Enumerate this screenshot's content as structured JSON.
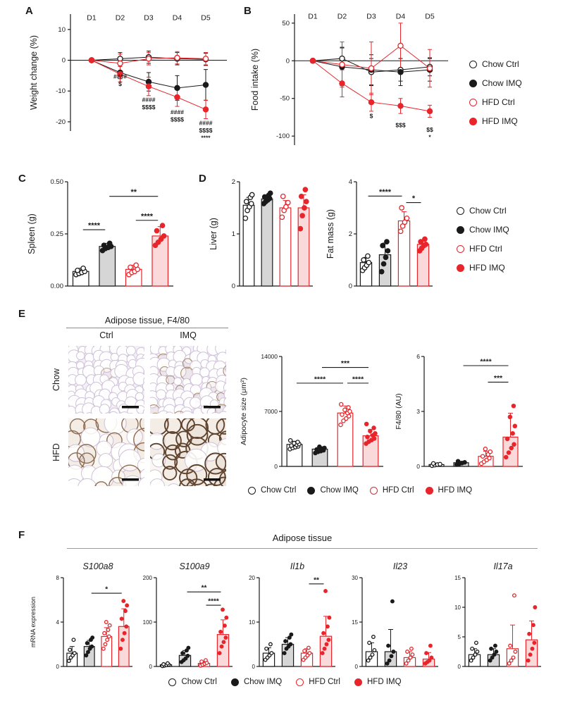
{
  "figure": {
    "panel_labels": {
      "A": "A",
      "B": "B",
      "C": "C",
      "D": "D",
      "E": "E",
      "F": "F"
    }
  },
  "colors": {
    "black": "#1a1a1a",
    "red": "#e8252b",
    "gray_fill": "#d6d6d6",
    "pink_fill": "#f9d9d9"
  },
  "legend": {
    "entries": [
      {
        "label": "Chow Ctrl",
        "marker": "open-black"
      },
      {
        "label": "Chow IMQ",
        "marker": "filled-black"
      },
      {
        "label": "HFD Ctrl",
        "marker": "open-red"
      },
      {
        "label": "HFD IMQ",
        "marker": "filled-red"
      }
    ]
  },
  "panel_e": {
    "header": "Adipose tissue, F4/80",
    "col_labels": [
      "Ctrl",
      "IMQ"
    ],
    "row_labels": [
      "Chow",
      "HFD"
    ],
    "images": [
      {
        "name": "chow-ctrl",
        "cell_size": "small",
        "stain": "none"
      },
      {
        "name": "chow-imq",
        "cell_size": "small",
        "stain": "light"
      },
      {
        "name": "hfd-ctrl",
        "cell_size": "large",
        "stain": "moderate"
      },
      {
        "name": "hfd-imq",
        "cell_size": "large",
        "stain": "heavy"
      }
    ]
  },
  "panel_f": {
    "title": "Adipose tissue"
  },
  "chart_data": [
    {
      "id": "weight_change",
      "type": "line",
      "panel": "A",
      "ylabel": "Weight change (%)",
      "x": [
        "D1",
        "D2",
        "D3",
        "D4",
        "D5"
      ],
      "ylim": [
        -23,
        15
      ],
      "yticks": [
        -20,
        -10,
        0,
        10
      ],
      "series": [
        {
          "name": "Chow Ctrl",
          "marker": "open-black",
          "values": [
            0,
            0.5,
            1,
            0.5,
            0.3
          ],
          "errors": [
            0,
            2,
            2,
            2,
            2
          ]
        },
        {
          "name": "Chow IMQ",
          "marker": "filled-black",
          "values": [
            0,
            -4,
            -7,
            -9,
            -8
          ],
          "errors": [
            0,
            2,
            3,
            4,
            5
          ]
        },
        {
          "name": "HFD Ctrl",
          "marker": "open-red",
          "values": [
            0,
            -1,
            0.5,
            0.8,
            0.5
          ],
          "errors": [
            0,
            3,
            2,
            2,
            2
          ]
        },
        {
          "name": "HFD IMQ",
          "marker": "filled-red",
          "values": [
            0,
            -4.5,
            -8.5,
            -12,
            -16
          ],
          "errors": [
            0,
            2.5,
            3,
            3,
            3
          ]
        }
      ],
      "annotations": [
        {
          "x": "D2",
          "y": -6,
          "lines": [
            "####",
            "$"
          ]
        },
        {
          "x": "D3",
          "y": -13.5,
          "lines": [
            "####",
            "$$$$"
          ]
        },
        {
          "x": "D4",
          "y": -17.5,
          "lines": [
            "####",
            "$$$$"
          ]
        },
        {
          "x": "D5",
          "y": -21,
          "lines": [
            "####",
            "$$$$",
            "****"
          ]
        }
      ]
    },
    {
      "id": "food_intake",
      "type": "line",
      "panel": "B",
      "ylabel": "Food intake (%)",
      "x": [
        "D1",
        "D2",
        "D3",
        "D4",
        "D5"
      ],
      "ylim": [
        -112,
        62
      ],
      "yticks": [
        -100,
        -50,
        0,
        50
      ],
      "series": [
        {
          "name": "Chow Ctrl",
          "marker": "open-black",
          "values": [
            0,
            3,
            -15,
            -12,
            -8
          ],
          "errors": [
            0,
            15,
            18,
            15,
            12
          ]
        },
        {
          "name": "Chow IMQ",
          "marker": "filled-black",
          "values": [
            0,
            -8,
            -12,
            -15,
            -12
          ],
          "errors": [
            0,
            25,
            20,
            18,
            15
          ]
        },
        {
          "name": "HFD Ctrl",
          "marker": "open-red",
          "values": [
            0,
            -5,
            -10,
            20,
            -10
          ],
          "errors": [
            0,
            30,
            35,
            30,
            25
          ]
        },
        {
          "name": "HFD IMQ",
          "marker": "filled-red",
          "values": [
            0,
            -30,
            -55,
            -60,
            -67
          ],
          "errors": [
            0,
            18,
            12,
            10,
            8
          ]
        }
      ],
      "annotations": [
        {
          "x": "D3",
          "y": -76,
          "lines": [
            "$"
          ]
        },
        {
          "x": "D4",
          "y": -88,
          "lines": [
            "$$$"
          ]
        },
        {
          "x": "D5",
          "y": -94,
          "lines": [
            "$$",
            "*"
          ]
        }
      ]
    },
    {
      "id": "spleen",
      "type": "bar",
      "panel": "C",
      "ylabel": "Spleen (g)",
      "groups": [
        "Chow Ctrl",
        "Chow IMQ",
        "HFD Ctrl",
        "HFD IMQ"
      ],
      "ylim": [
        0,
        0.5
      ],
      "yticks": [
        0,
        0.25,
        0.5
      ],
      "ytick_labels": [
        "0.00",
        "0.25",
        "0.50"
      ],
      "values": [
        0.07,
        0.19,
        0.08,
        0.24
      ],
      "errors": [
        0.015,
        0.015,
        0.02,
        0.045
      ],
      "dots": [
        [
          0.055,
          0.06,
          0.065,
          0.07,
          0.075,
          0.085
        ],
        [
          0.17,
          0.18,
          0.185,
          0.19,
          0.195,
          0.205
        ],
        [
          0.055,
          0.065,
          0.07,
          0.08,
          0.09,
          0.1
        ],
        [
          0.195,
          0.21,
          0.225,
          0.24,
          0.265,
          0.29
        ]
      ],
      "brackets": [
        {
          "from": 0,
          "to": 1,
          "label": "****",
          "y": 0.27
        },
        {
          "from": 2,
          "to": 3,
          "label": "****",
          "y": 0.315
        },
        {
          "from": 1,
          "to": 3,
          "label": "**",
          "y": 0.43
        }
      ]
    },
    {
      "id": "liver",
      "type": "bar",
      "panel": "D",
      "ylabel": "Liver (g)",
      "groups": [
        "Chow Ctrl",
        "Chow IMQ",
        "HFD Ctrl",
        "HFD IMQ"
      ],
      "ylim": [
        0,
        2
      ],
      "yticks": [
        0,
        1,
        2
      ],
      "values": [
        1.55,
        1.67,
        1.5,
        1.5
      ],
      "errors": [
        0.15,
        0.07,
        0.14,
        0.25
      ],
      "dots": [
        [
          1.3,
          1.45,
          1.52,
          1.58,
          1.62,
          1.7,
          1.75
        ],
        [
          1.58,
          1.62,
          1.65,
          1.68,
          1.71,
          1.74,
          1.78
        ],
        [
          1.32,
          1.45,
          1.52,
          1.6,
          1.72
        ],
        [
          1.1,
          1.35,
          1.5,
          1.62,
          1.72,
          1.85
        ]
      ],
      "brackets": []
    },
    {
      "id": "fat_mass",
      "type": "bar",
      "panel": "D",
      "ylabel": "Fat mass (g)",
      "groups": [
        "Chow Ctrl",
        "Chow IMQ",
        "HFD Ctrl",
        "HFD IMQ"
      ],
      "ylim": [
        0,
        4
      ],
      "yticks": [
        0,
        2,
        4
      ],
      "values": [
        0.9,
        1.2,
        2.5,
        1.6
      ],
      "errors": [
        0.2,
        0.45,
        0.35,
        0.15
      ],
      "dots": [
        [
          0.6,
          0.7,
          0.8,
          0.9,
          1.0,
          1.15
        ],
        [
          0.55,
          0.85,
          1.1,
          1.35,
          1.55,
          1.7
        ],
        [
          2.1,
          2.3,
          2.45,
          2.6,
          3.0
        ],
        [
          1.35,
          1.45,
          1.55,
          1.6,
          1.7,
          1.8
        ]
      ],
      "brackets": [
        {
          "from": 0,
          "to": 2,
          "label": "****",
          "y": 3.45
        },
        {
          "from": 2,
          "to": 3,
          "label": "*",
          "y": 3.2
        }
      ]
    },
    {
      "id": "adipocyte_size",
      "type": "bar",
      "panel": "E",
      "ylabel": "Adipocyte size (μm²)",
      "groups": [
        "Chow Ctrl",
        "Chow IMQ",
        "HFD Ctrl",
        "HFD IMQ"
      ],
      "ylim": [
        0,
        14000
      ],
      "yticks": [
        0,
        7000,
        14000
      ],
      "values": [
        2800,
        2200,
        6800,
        3900
      ],
      "errors": [
        400,
        280,
        900,
        800
      ],
      "dots": [
        [
          2200,
          2350,
          2450,
          2550,
          2650,
          2750,
          2850,
          2950,
          3100,
          3300
        ],
        [
          1700,
          1850,
          1950,
          2050,
          2150,
          2250,
          2350,
          2500
        ],
        [
          5300,
          5800,
          6100,
          6400,
          6600,
          6800,
          7000,
          7200,
          7500,
          7900
        ],
        [
          2900,
          3150,
          3350,
          3550,
          3750,
          3950,
          4200,
          4500,
          4900,
          5400
        ]
      ],
      "brackets": [
        {
          "from": 1,
          "to": 3,
          "label": "***",
          "y": 12600
        },
        {
          "from": 0,
          "to": 2,
          "label": "****",
          "y": 10600
        },
        {
          "from": 2,
          "to": 3,
          "label": "****",
          "y": 10600
        }
      ]
    },
    {
      "id": "f480",
      "type": "bar",
      "panel": "E",
      "ylabel": "F4/80 (AU)",
      "groups": [
        "Chow Ctrl",
        "Chow IMQ",
        "HFD Ctrl",
        "HFD IMQ"
      ],
      "ylim": [
        0,
        6
      ],
      "yticks": [
        0,
        3,
        6
      ],
      "values": [
        0.1,
        0.2,
        0.55,
        1.6
      ],
      "errors": [
        0.05,
        0.08,
        0.28,
        1.3
      ],
      "dots": [
        [
          0.04,
          0.07,
          0.1,
          0.12,
          0.16
        ],
        [
          0.1,
          0.14,
          0.18,
          0.22,
          0.28
        ],
        [
          0.15,
          0.25,
          0.35,
          0.45,
          0.55,
          0.65,
          0.8,
          0.95
        ],
        [
          0.5,
          0.75,
          1.0,
          1.2,
          1.5,
          1.8,
          2.2,
          2.7,
          3.3
        ]
      ],
      "brackets": [
        {
          "from": 1,
          "to": 3,
          "label": "****",
          "y": 5.5
        },
        {
          "from": 2,
          "to": 3,
          "label": "***",
          "y": 4.6
        }
      ]
    },
    {
      "id": "s100a8",
      "type": "bar",
      "panel": "F",
      "title": "S100a8",
      "ylabel": "mRNA expression",
      "groups": [
        "Chow Ctrl",
        "Chow IMQ",
        "HFD Ctrl",
        "HFD IMQ"
      ],
      "ylim": [
        0,
        8
      ],
      "yticks": [
        0,
        4,
        8
      ],
      "values": [
        1.2,
        1.8,
        2.7,
        3.6
      ],
      "errors": [
        0.6,
        0.55,
        0.8,
        1.6
      ],
      "dots": [
        [
          0.5,
          0.8,
          1.0,
          1.2,
          1.5,
          2.4
        ],
        [
          1.0,
          1.3,
          1.6,
          1.8,
          2.1,
          2.4,
          2.6
        ],
        [
          1.6,
          2.0,
          2.4,
          2.7,
          3.0,
          3.3,
          3.7,
          4.0
        ],
        [
          1.6,
          2.4,
          3.0,
          3.6,
          4.3,
          5.0,
          5.5,
          5.9
        ]
      ],
      "brackets": [
        {
          "from": 1,
          "to": 3,
          "label": "*",
          "y": 6.6
        }
      ]
    },
    {
      "id": "s100a9",
      "type": "bar",
      "panel": "F",
      "title": "S100a9",
      "groups": [
        "Chow Ctrl",
        "Chow IMQ",
        "HFD Ctrl",
        "HFD IMQ"
      ],
      "ylim": [
        0,
        200
      ],
      "yticks": [
        0,
        100,
        200
      ],
      "values": [
        4,
        25,
        7,
        72
      ],
      "errors": [
        2,
        11,
        4,
        33
      ],
      "dots": [
        [
          1,
          2,
          3,
          4,
          5,
          7
        ],
        [
          10,
          14,
          18,
          24,
          30,
          36,
          42
        ],
        [
          2,
          4,
          6,
          8,
          11,
          14
        ],
        [
          30,
          45,
          55,
          65,
          78,
          92,
          110,
          128
        ]
      ],
      "brackets": [
        {
          "from": 1,
          "to": 3,
          "label": "**",
          "y": 168
        },
        {
          "from": 2,
          "to": 3,
          "label": "****",
          "y": 138
        }
      ]
    },
    {
      "id": "il1b",
      "type": "bar",
      "panel": "F",
      "title": "Il1b",
      "groups": [
        "Chow Ctrl",
        "Chow IMQ",
        "HFD Ctrl",
        "HFD IMQ"
      ],
      "ylim": [
        0,
        20
      ],
      "yticks": [
        0,
        10,
        20
      ],
      "values": [
        3,
        5,
        3,
        6.8
      ],
      "errors": [
        1.2,
        1.5,
        1,
        4.5
      ],
      "dots": [
        [
          1.5,
          2,
          2.5,
          3,
          4,
          5
        ],
        [
          3,
          4,
          4.5,
          5,
          5.7,
          6.5,
          7.2
        ],
        [
          1.5,
          2,
          2.5,
          3,
          3.5,
          4.2
        ],
        [
          3,
          4,
          5,
          6,
          7.5,
          9,
          11,
          17
        ]
      ],
      "brackets": [
        {
          "from": 2,
          "to": 3,
          "label": "**",
          "y": 18.6
        }
      ]
    },
    {
      "id": "il23",
      "type": "bar",
      "panel": "F",
      "title": "Il23",
      "groups": [
        "Chow Ctrl",
        "Chow IMQ",
        "HFD Ctrl",
        "HFD IMQ"
      ],
      "ylim": [
        0,
        30
      ],
      "yticks": [
        0,
        15,
        30
      ],
      "values": [
        5,
        5,
        3,
        2.5
      ],
      "errors": [
        3,
        7.5,
        2,
        2.2
      ],
      "dots": [
        [
          2,
          3,
          4,
          5.5,
          8,
          10
        ],
        [
          1,
          2,
          3.5,
          5,
          7,
          22
        ],
        [
          1,
          2,
          3,
          4,
          5,
          6
        ],
        [
          1,
          1.5,
          2,
          3,
          4.5,
          7
        ]
      ],
      "brackets": []
    },
    {
      "id": "il17a",
      "type": "bar",
      "panel": "F",
      "title": "Il17a",
      "groups": [
        "Chow Ctrl",
        "Chow IMQ",
        "HFD Ctrl",
        "HFD IMQ"
      ],
      "ylim": [
        0,
        15
      ],
      "yticks": [
        0,
        5,
        10,
        15
      ],
      "values": [
        2,
        2,
        3,
        4.5
      ],
      "errors": [
        1,
        1,
        4,
        3.2
      ],
      "dots": [
        [
          1,
          1.5,
          2,
          2.5,
          3,
          4
        ],
        [
          1,
          1.5,
          2,
          2.5,
          3,
          3.5
        ],
        [
          0.5,
          1,
          1.5,
          2.5,
          3.5,
          12
        ],
        [
          1,
          2,
          3,
          4,
          5.5,
          7,
          10
        ]
      ],
      "brackets": []
    }
  ]
}
